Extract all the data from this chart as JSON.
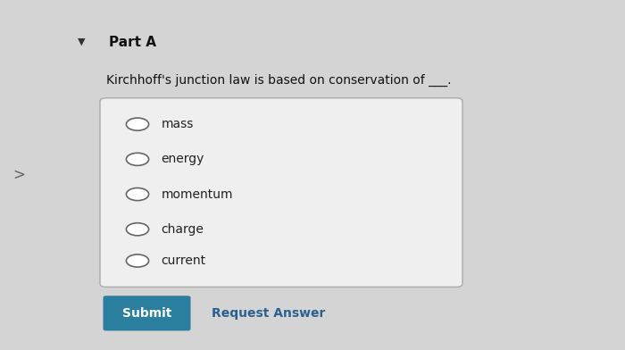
{
  "background_color": "#d4d4d4",
  "panel_color": "#e6e6e6",
  "part_label": "Part A",
  "triangle_color": "#333333",
  "question_text": "Kirchhoff's junction law is based on conservation of ___.",
  "options": [
    "mass",
    "energy",
    "momentum",
    "charge",
    "current"
  ],
  "box_bg": "#efefef",
  "box_border": "#aaaaaa",
  "submit_bg": "#2a7f9e",
  "submit_text": "Submit",
  "submit_text_color": "#ffffff",
  "request_answer_text": "Request Answer",
  "request_answer_color": "#2a6090",
  "circle_edge_color": "#666666",
  "option_text_color": "#222222",
  "part_label_color": "#111111",
  "question_color": "#111111",
  "left_arrow_color": "#666666",
  "font_size_part": 11,
  "font_size_question": 10,
  "font_size_option": 10,
  "font_size_submit": 10,
  "font_size_request": 10
}
